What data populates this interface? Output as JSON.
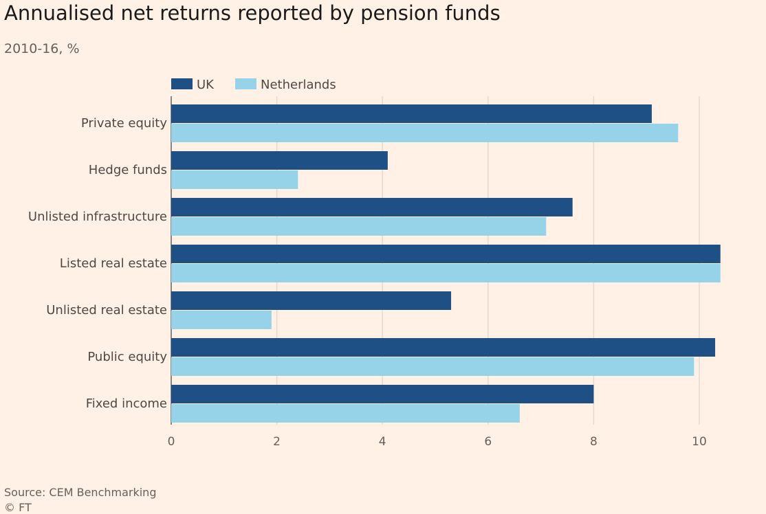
{
  "title": "Annualised net returns reported by pension funds",
  "subtitle": "2010-16, %",
  "source": "Source: CEM Benchmarking",
  "copyright": "© FT",
  "chart_data": {
    "type": "bar",
    "orientation": "horizontal",
    "categories": [
      "Private equity",
      "Hedge funds",
      "Unlisted infrastructure",
      "Listed real estate",
      "Unlisted real estate",
      "Public equity",
      "Fixed income"
    ],
    "series": [
      {
        "name": "UK",
        "color": "#1f5085",
        "values": [
          9.1,
          4.1,
          7.6,
          10.4,
          5.3,
          10.3,
          8.0
        ]
      },
      {
        "name": "Netherlands",
        "color": "#96d3e8",
        "values": [
          9.6,
          2.4,
          7.1,
          10.4,
          1.9,
          9.9,
          6.6
        ]
      }
    ],
    "xlim": [
      0,
      10.4
    ],
    "xticks": [
      0,
      2,
      4,
      6,
      8,
      10
    ],
    "grid": true,
    "legend": "top-left"
  }
}
